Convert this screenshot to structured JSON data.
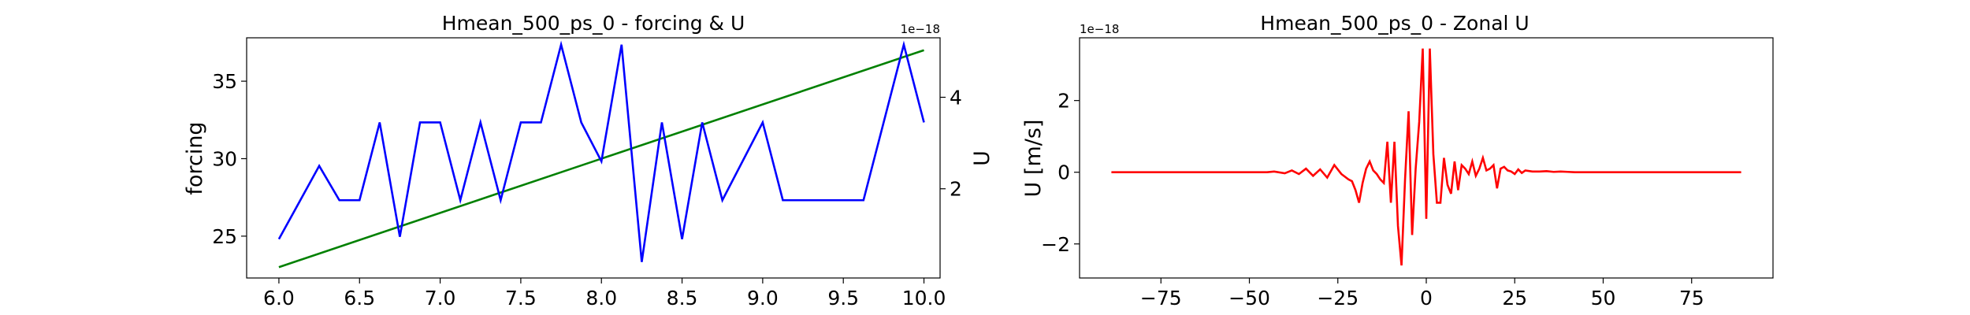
{
  "chart_data": [
    {
      "type": "line",
      "title": "Hmean_500_ps_0 - forcing & U",
      "xlabel": "",
      "ylabel": "forcing",
      "y2label": "U",
      "xlim": [
        5.8,
        10.1
      ],
      "ylim": [
        22.3,
        37.8
      ],
      "y2lim": [
        5e-20,
        5.3e-18
      ],
      "y2_offset_label": "1e−18",
      "xticks": [
        "6.0",
        "6.5",
        "7.0",
        "7.5",
        "8.0",
        "8.5",
        "9.0",
        "9.5",
        "10.0"
      ],
      "xtick_values": [
        6.0,
        6.5,
        7.0,
        7.5,
        8.0,
        8.5,
        9.0,
        9.5,
        10.0
      ],
      "yticks": [
        "25",
        "30",
        "35"
      ],
      "ytick_values": [
        25,
        30,
        35
      ],
      "y2ticks": [
        "2",
        "4"
      ],
      "y2tick_values": [
        2e-18,
        4e-18
      ],
      "grid": false,
      "series": [
        {
          "axis": "left",
          "color": "#008000",
          "x": [
            6.0,
            10.0
          ],
          "values": [
            23.0,
            37.0
          ]
        },
        {
          "axis": "right",
          "color": "#0000ff",
          "x": [
            6.0,
            6.25,
            6.375,
            6.5,
            6.625,
            6.75,
            6.875,
            7.0,
            7.125,
            7.25,
            7.375,
            7.5,
            7.625,
            7.75,
            7.875,
            8.0,
            8.125,
            8.25,
            8.375,
            8.5,
            8.625,
            8.75,
            9.0,
            9.125,
            9.625,
            9.875,
            10.0
          ],
          "values": [
            9e-19,
            2.5e-18,
            1.75e-18,
            1.75e-18,
            3.45e-18,
            9.5e-19,
            3.45e-18,
            3.45e-18,
            1.75e-18,
            3.45e-18,
            1.75e-18,
            3.45e-18,
            3.45e-18,
            5.15e-18,
            3.45e-18,
            2.6e-18,
            5.15e-18,
            4e-19,
            3.45e-18,
            9e-19,
            3.45e-18,
            1.75e-18,
            3.45e-18,
            1.75e-18,
            1.75e-18,
            5.15e-18,
            3.45e-18
          ]
        }
      ]
    },
    {
      "type": "line",
      "title": "Hmean_500_ps_0 - Zonal U",
      "xlabel": "",
      "ylabel": "U [m/s]",
      "xlim": [
        -98,
        98
      ],
      "ylim": [
        -2.95e-18,
        3.75e-18
      ],
      "y_offset_label": "1e−18",
      "xticks": [
        "−75",
        "−50",
        "−25",
        "0",
        "25",
        "50",
        "75"
      ],
      "xtick_values": [
        -75,
        -50,
        -25,
        0,
        25,
        50,
        75
      ],
      "yticks": [
        "−2",
        "0",
        "2"
      ],
      "ytick_values": [
        -2e-18,
        0,
        2e-18
      ],
      "grid": false,
      "series": [
        {
          "color": "#ff0000",
          "x": [
            -89,
            -45,
            -43,
            -40,
            -38,
            -36,
            -34,
            -32,
            -30,
            -28,
            -26,
            -24,
            -22,
            -21,
            -20,
            -19,
            -18,
            -17,
            -16,
            -15,
            -14,
            -13,
            -12,
            -11,
            -10,
            -9,
            -8,
            -7,
            -6,
            -5,
            -4,
            -3,
            -2,
            -1,
            0,
            1,
            2,
            3,
            4,
            5,
            6,
            7,
            8,
            9,
            10,
            11,
            12,
            13,
            14,
            15,
            16,
            17,
            18,
            19,
            20,
            21,
            22,
            23,
            24,
            25,
            26,
            27,
            28,
            30,
            32,
            34,
            36,
            38,
            40,
            42,
            44,
            45,
            89
          ],
          "values": [
            0,
            0,
            2e-20,
            -3e-20,
            5e-20,
            -5e-20,
            1e-19,
            -1e-19,
            8e-20,
            -1.5e-19,
            2e-19,
            -5e-20,
            -2e-19,
            -2.5e-19,
            -5e-19,
            -8.5e-19,
            -3e-19,
            1e-19,
            3e-19,
            5e-20,
            -5e-20,
            -2e-19,
            -3e-19,
            8.5e-19,
            -8.5e-19,
            8.5e-19,
            -1.5e-18,
            -2.6e-18,
            -2e-19,
            1.7e-18,
            -1.75e-18,
            1e-19,
            1.4e-18,
            3.45e-18,
            -1.3e-18,
            3.45e-18,
            5e-19,
            -8.5e-19,
            -8.5e-19,
            4e-19,
            -3.5e-19,
            -6e-19,
            3e-19,
            -5e-19,
            2e-19,
            1e-19,
            -5e-20,
            3e-19,
            -1e-19,
            1e-19,
            4e-19,
            5e-20,
            1e-19,
            2e-19,
            -4.5e-19,
            1e-19,
            1.5e-19,
            5e-20,
            2e-20,
            -5e-20,
            8e-20,
            -2e-20,
            5e-20,
            2e-20,
            2e-20,
            3e-20,
            1e-20,
            2e-20,
            1e-20,
            0,
            0,
            0,
            0
          ]
        }
      ]
    }
  ]
}
